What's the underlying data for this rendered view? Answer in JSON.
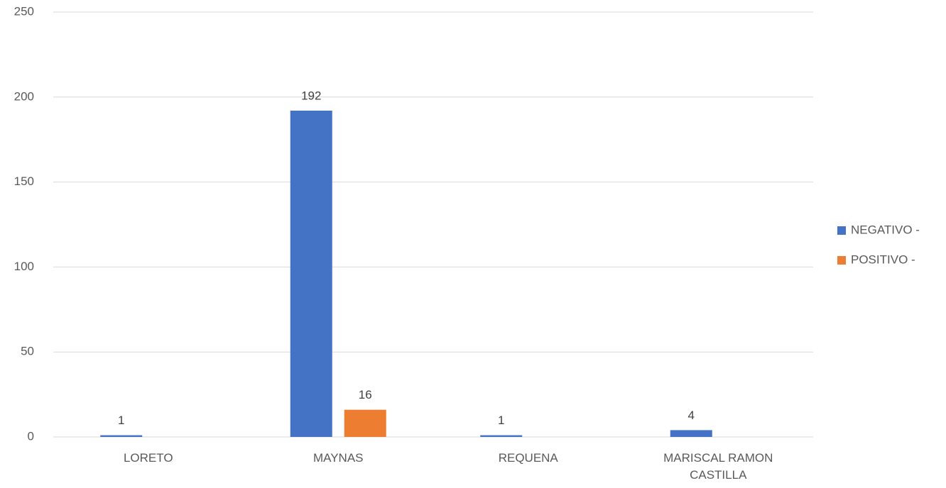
{
  "chart_data": {
    "type": "bar",
    "categories": [
      "LORETO",
      "MAYNAS",
      "REQUENA",
      "MARISCAL RAMON CASTILLA"
    ],
    "series": [
      {
        "name": "NEGATIVO -",
        "color": "#4472c4",
        "values": [
          1,
          192,
          1,
          4
        ]
      },
      {
        "name": "POSITIVO -",
        "color": "#ed7d31",
        "values": [
          null,
          16,
          null,
          null
        ]
      }
    ],
    "ylim": [
      0,
      250
    ],
    "yticks": [
      0,
      50,
      100,
      150,
      200,
      250
    ],
    "grid": true,
    "legend": "right"
  }
}
